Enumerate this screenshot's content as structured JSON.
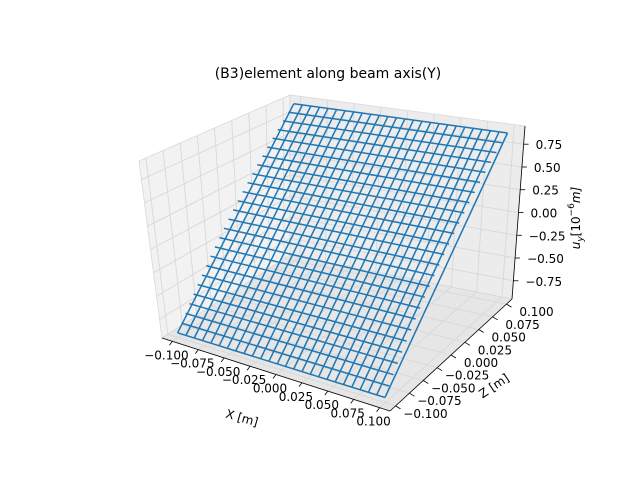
{
  "chart_data": {
    "type": "surface-wireframe-3d",
    "title": "(B3)element along beam axis(Y)",
    "xlabel": "X [m]",
    "ylabel": "Z [m]",
    "zlabel_main": "u",
    "zlabel_sub": "y",
    "zlabel_rest": "[10",
    "zlabel_sup": "−6",
    "zlabel_end": "m]",
    "xlim": [
      -0.11,
      0.11
    ],
    "ylim": [
      -0.11,
      0.11
    ],
    "zlim": [
      -0.95,
      0.95
    ],
    "x_ticks": [
      "−0.100",
      "−0.075",
      "−0.050",
      "−0.025",
      "0.000",
      "0.025",
      "0.050",
      "0.075",
      "0.100"
    ],
    "y_ticks": [
      "−0.100",
      "−0.075",
      "−0.050",
      "−0.025",
      "0.000",
      "0.025",
      "0.050",
      "0.075",
      "0.100"
    ],
    "z_ticks": [
      "−0.75",
      "−0.50",
      "−0.25",
      "0.00",
      "0.25",
      "0.50",
      "0.75"
    ],
    "x_tick_values": [
      -0.1,
      -0.075,
      -0.05,
      -0.025,
      0.0,
      0.025,
      0.05,
      0.075,
      0.1
    ],
    "y_tick_values": [
      -0.1,
      -0.075,
      -0.05,
      -0.025,
      0.0,
      0.025,
      0.05,
      0.075,
      0.1
    ],
    "z_tick_values": [
      -0.75,
      -0.5,
      -0.25,
      0.0,
      0.25,
      0.5,
      0.75
    ],
    "surface": {
      "x_range": [
        -0.1,
        0.1
      ],
      "y_range": [
        -0.1,
        0.1
      ],
      "grid_count": 26,
      "z_at_y_min": -0.9,
      "z_at_y_max": 0.9,
      "color": "#1f77b4"
    },
    "grid": true,
    "pane_color": "#f2f2f2",
    "grid_color": "#d8d8d8"
  }
}
